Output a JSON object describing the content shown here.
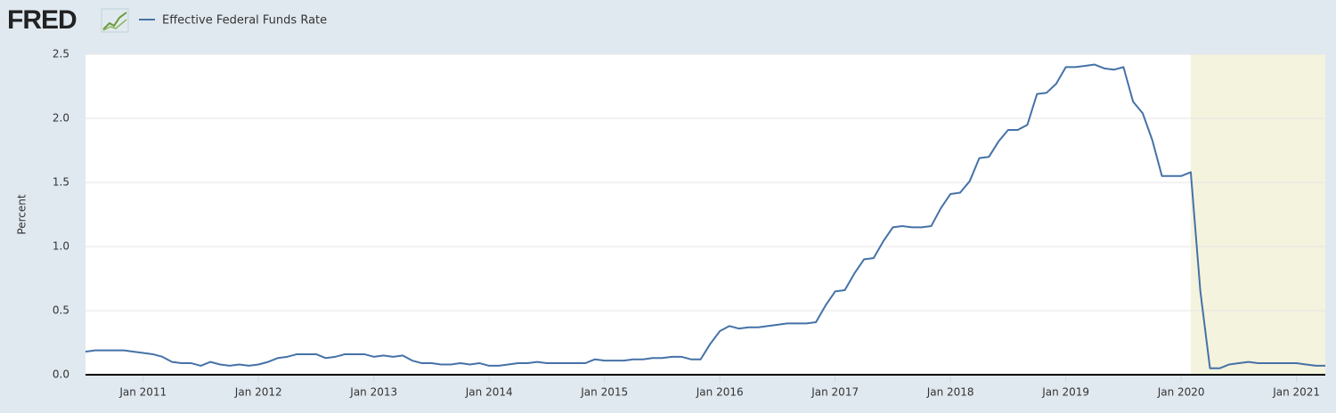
{
  "logo": "FRED",
  "chart_data": {
    "type": "line",
    "y_label": "Percent",
    "x": [
      "2010-07",
      "2010-08",
      "2010-09",
      "2010-10",
      "2010-11",
      "2010-12",
      "2011-01",
      "2011-02",
      "2011-03",
      "2011-04",
      "2011-05",
      "2011-06",
      "2011-07",
      "2011-08",
      "2011-09",
      "2011-10",
      "2011-11",
      "2011-12",
      "2012-01",
      "2012-02",
      "2012-03",
      "2012-04",
      "2012-05",
      "2012-06",
      "2012-07",
      "2012-08",
      "2012-09",
      "2012-10",
      "2012-11",
      "2012-12",
      "2013-01",
      "2013-02",
      "2013-03",
      "2013-04",
      "2013-05",
      "2013-06",
      "2013-07",
      "2013-08",
      "2013-09",
      "2013-10",
      "2013-11",
      "2013-12",
      "2014-01",
      "2014-02",
      "2014-03",
      "2014-04",
      "2014-05",
      "2014-06",
      "2014-07",
      "2014-08",
      "2014-09",
      "2014-10",
      "2014-11",
      "2014-12",
      "2015-01",
      "2015-02",
      "2015-03",
      "2015-04",
      "2015-05",
      "2015-06",
      "2015-07",
      "2015-08",
      "2015-09",
      "2015-10",
      "2015-11",
      "2015-12",
      "2016-01",
      "2016-02",
      "2016-03",
      "2016-04",
      "2016-05",
      "2016-06",
      "2016-07",
      "2016-08",
      "2016-09",
      "2016-10",
      "2016-11",
      "2016-12",
      "2017-01",
      "2017-02",
      "2017-03",
      "2017-04",
      "2017-05",
      "2017-06",
      "2017-07",
      "2017-08",
      "2017-09",
      "2017-10",
      "2017-11",
      "2017-12",
      "2018-01",
      "2018-02",
      "2018-03",
      "2018-04",
      "2018-05",
      "2018-06",
      "2018-07",
      "2018-08",
      "2018-09",
      "2018-10",
      "2018-11",
      "2018-12",
      "2019-01",
      "2019-02",
      "2019-03",
      "2019-04",
      "2019-05",
      "2019-06",
      "2019-07",
      "2019-08",
      "2019-09",
      "2019-10",
      "2019-11",
      "2019-12",
      "2020-01",
      "2020-02",
      "2020-03",
      "2020-04",
      "2020-05",
      "2020-06",
      "2020-07",
      "2020-08",
      "2020-09",
      "2020-10",
      "2020-11",
      "2020-12",
      "2021-01",
      "2021-02",
      "2021-03",
      "2021-04"
    ],
    "series": [
      {
        "name": "Effective Federal Funds Rate",
        "color": "#4572a7",
        "values": [
          0.18,
          0.19,
          0.19,
          0.19,
          0.19,
          0.18,
          0.17,
          0.16,
          0.14,
          0.1,
          0.09,
          0.09,
          0.07,
          0.1,
          0.08,
          0.07,
          0.08,
          0.07,
          0.08,
          0.1,
          0.13,
          0.14,
          0.16,
          0.16,
          0.16,
          0.13,
          0.14,
          0.16,
          0.16,
          0.16,
          0.14,
          0.15,
          0.14,
          0.15,
          0.11,
          0.09,
          0.09,
          0.08,
          0.08,
          0.09,
          0.08,
          0.09,
          0.07,
          0.07,
          0.08,
          0.09,
          0.09,
          0.1,
          0.09,
          0.09,
          0.09,
          0.09,
          0.09,
          0.12,
          0.11,
          0.11,
          0.11,
          0.12,
          0.12,
          0.13,
          0.13,
          0.14,
          0.14,
          0.12,
          0.12,
          0.24,
          0.34,
          0.38,
          0.36,
          0.37,
          0.37,
          0.38,
          0.39,
          0.4,
          0.4,
          0.4,
          0.41,
          0.54,
          0.65,
          0.66,
          0.79,
          0.9,
          0.91,
          1.04,
          1.15,
          1.16,
          1.15,
          1.15,
          1.16,
          1.3,
          1.41,
          1.42,
          1.51,
          1.69,
          1.7,
          1.82,
          1.91,
          1.91,
          1.95,
          2.19,
          2.2,
          2.27,
          2.4,
          2.4,
          2.41,
          2.42,
          2.39,
          2.38,
          2.4,
          2.13,
          2.04,
          1.83,
          1.55,
          1.55,
          1.55,
          1.58,
          0.65,
          0.05,
          0.05,
          0.08,
          0.09,
          0.1,
          0.09,
          0.09,
          0.09,
          0.09,
          0.09,
          0.08,
          0.07,
          0.07
        ]
      }
    ],
    "xlim": [
      "2010-07",
      "2021-04"
    ],
    "xticks": [
      {
        "value": "2011-01",
        "label": "Jan 2011"
      },
      {
        "value": "2012-01",
        "label": "Jan 2012"
      },
      {
        "value": "2013-01",
        "label": "Jan 2013"
      },
      {
        "value": "2014-01",
        "label": "Jan 2014"
      },
      {
        "value": "2015-01",
        "label": "Jan 2015"
      },
      {
        "value": "2016-01",
        "label": "Jan 2016"
      },
      {
        "value": "2017-01",
        "label": "Jan 2017"
      },
      {
        "value": "2018-01",
        "label": "Jan 2018"
      },
      {
        "value": "2019-01",
        "label": "Jan 2019"
      },
      {
        "value": "2020-01",
        "label": "Jan 2020"
      },
      {
        "value": "2021-01",
        "label": "Jan 2021"
      }
    ],
    "ylim": [
      0,
      2.5
    ],
    "yticks": [
      {
        "value": 0,
        "label": "0.0"
      },
      0.5,
      {
        "value": 1,
        "label": "1.0"
      },
      1.5,
      {
        "value": 2,
        "label": "2.0"
      },
      2.5
    ],
    "grid": true,
    "recession": {
      "start": "2020-02",
      "end": "2021-04",
      "color": "#f4f3dd"
    }
  }
}
